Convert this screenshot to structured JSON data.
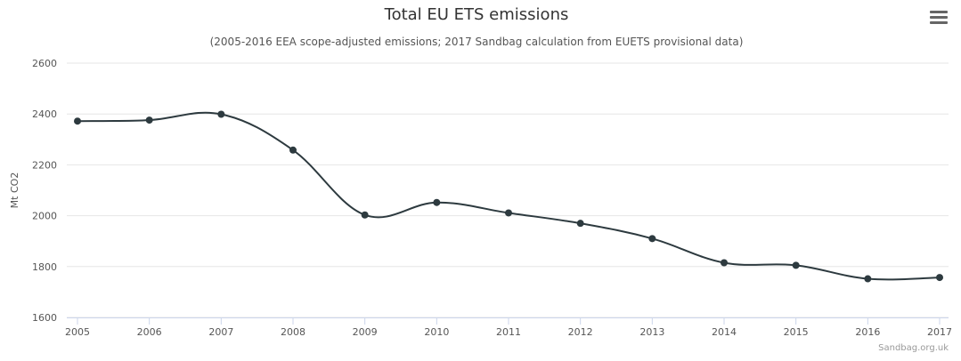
{
  "chart_data": {
    "type": "line",
    "title": "Total EU ETS emissions",
    "subtitle": "(2005-2016 EEA scope-adjusted emissions; 2017 Sandbag calculation from EUETS provisional data)",
    "xlabel": "",
    "ylabel": "Mt CO2",
    "categories": [
      "2005",
      "2006",
      "2007",
      "2008",
      "2009",
      "2010",
      "2011",
      "2012",
      "2013",
      "2014",
      "2015",
      "2016",
      "2017"
    ],
    "series": [
      {
        "name": "Total EU ETS emissions",
        "values": [
          2372,
          2376,
          2399,
          2258,
          2003,
          2052,
          2011,
          1970,
          1910,
          1815,
          1805,
          1752,
          1757
        ]
      }
    ],
    "ylim": [
      1600,
      2600
    ],
    "yticks": [
      1600,
      1800,
      2000,
      2200,
      2400,
      2600
    ],
    "grid": true,
    "legend": "none",
    "colors": {
      "line": "#2d3a3f",
      "grid": "#e6e6e6",
      "axis": "#ccd6eb"
    }
  },
  "credits": "Sandbag.org.uk",
  "menu_icon": "hamburger-menu-icon"
}
